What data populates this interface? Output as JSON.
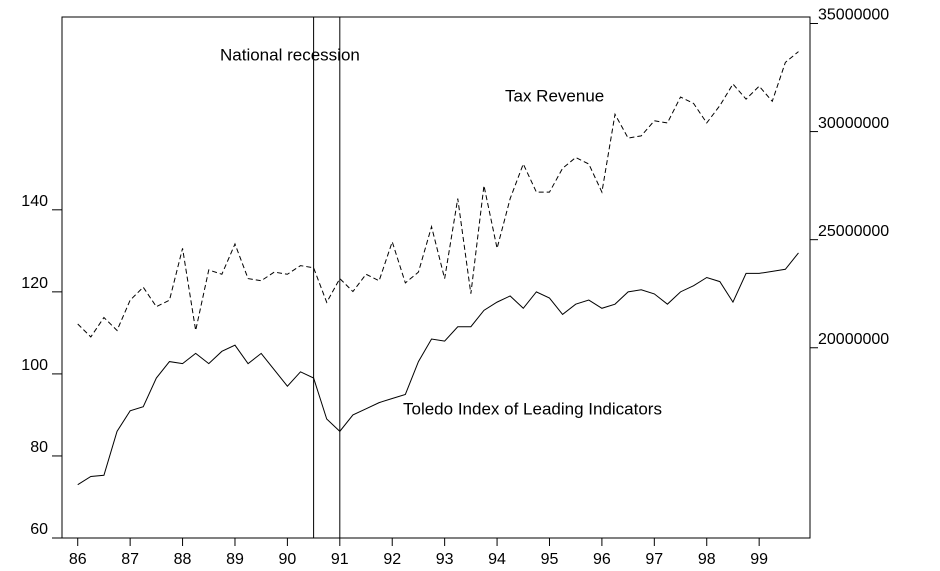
{
  "chart_data": {
    "type": "line",
    "annotations": [
      "National recession",
      "Tax Revenue",
      "Toledo Index of Leading Indicators"
    ],
    "x": [
      86,
      86.25,
      86.5,
      86.75,
      87,
      87.25,
      87.5,
      87.75,
      88,
      88.25,
      88.5,
      88.75,
      89,
      89.25,
      89.5,
      89.75,
      90,
      90.25,
      90.5,
      90.75,
      91,
      91.25,
      91.5,
      91.75,
      92,
      92.25,
      92.5,
      92.75,
      93,
      93.25,
      93.5,
      93.75,
      94,
      94.25,
      94.5,
      94.75,
      95,
      95.25,
      95.5,
      95.75,
      96,
      96.25,
      96.5,
      96.75,
      97,
      97.25,
      97.5,
      97.75,
      98,
      98.25,
      98.5,
      98.75,
      99,
      99.25,
      99.5,
      99.75
    ],
    "series": [
      {
        "name": "Toledo Index of Leading Indicators",
        "color": "#000000",
        "line_style": "solid",
        "values": [
          73,
          75,
          75.3,
          86,
          91,
          92,
          99,
          103,
          102.5,
          105,
          102.5,
          105.5,
          107,
          102.5,
          105,
          101,
          97,
          100.5,
          99,
          89,
          86,
          90,
          91.5,
          93,
          94,
          95,
          103,
          108.5,
          108,
          111.5,
          111.5,
          115.5,
          117.5,
          119,
          116,
          120,
          118.5,
          114.5,
          117,
          118,
          116,
          117,
          120,
          120.5,
          119.5,
          117,
          120,
          121.5,
          123.5,
          122.5,
          117.5,
          124.5,
          124.5,
          125,
          125.5,
          129.5
        ]
      },
      {
        "name": "Tax Revenue",
        "color": "#000000",
        "line_style": "dashed",
        "axis": "y2",
        "values": [
          21100000,
          20500000,
          21400000,
          20800000,
          22200000,
          22800000,
          21900000,
          22200000,
          24600000,
          20800000,
          23600000,
          23400000,
          24800000,
          23200000,
          23100000,
          23500000,
          23400000,
          23800000,
          23700000,
          22100000,
          23200000,
          22600000,
          23400000,
          23100000,
          24900000,
          23000000,
          23500000,
          25600000,
          23200000,
          26900000,
          22500000,
          27500000,
          24600000,
          26900000,
          28500000,
          27200000,
          27200000,
          28300000,
          28800000,
          28500000,
          27200000,
          30800000,
          29700000,
          29800000,
          30500000,
          30400000,
          31600000,
          31300000,
          30400000,
          31200000,
          32200000,
          31500000,
          32100000,
          31400000,
          33200000,
          33700000
        ]
      }
    ],
    "recession_lines": [
      90.5,
      91
    ],
    "xlim": [
      85.7,
      99.97
    ],
    "xticks": [
      86,
      87,
      88,
      89,
      90,
      91,
      92,
      93,
      94,
      95,
      96,
      97,
      98,
      99
    ],
    "ylim": [
      60,
      187
    ],
    "yticks": [
      60,
      80,
      100,
      120,
      140
    ],
    "y2lim": [
      11200000,
      35300000
    ],
    "y2ticks": [
      20000000,
      25000000,
      30000000,
      35000000
    ],
    "grid": false
  }
}
